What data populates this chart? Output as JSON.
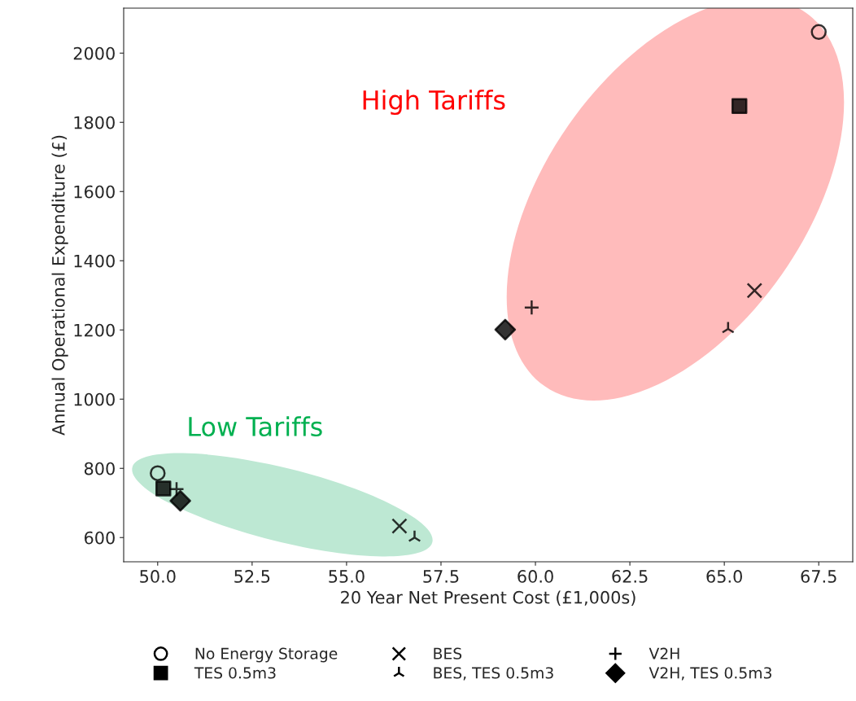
{
  "chart_data": {
    "type": "scatter",
    "xlabel": "20 Year Net Present Cost (£1,000s)",
    "ylabel": "Annual Operational Expenditure (£)",
    "annotations": [
      "High Tariffs",
      "Low Tariffs"
    ],
    "xlim": [
      49.1,
      68.4
    ],
    "xticks": [
      {
        "value": 50,
        "label": "50.0"
      },
      52.5,
      {
        "value": 55,
        "label": "55.0"
      },
      57.5,
      {
        "value": 60,
        "label": "60.0"
      },
      62.5,
      {
        "value": 65,
        "label": "65.0"
      },
      67.5
    ],
    "ylim": [
      530,
      2130
    ],
    "yticks": [
      600,
      800,
      1000,
      1200,
      1400,
      1600,
      1800,
      2000
    ],
    "grid": false,
    "legend": "bottom",
    "series": [
      {
        "name": "No Energy Storage",
        "marker": "circle",
        "x": [
          50.0,
          67.5
        ],
        "values": [
          786,
          2061
        ],
        "color": "#000000"
      },
      {
        "name": "TES 0.5m3",
        "marker": "square",
        "x": [
          50.15,
          65.4
        ],
        "values": [
          742,
          1847
        ],
        "color": "#000000"
      },
      {
        "name": "BES",
        "marker": "cross",
        "x": [
          56.4,
          65.8
        ],
        "values": [
          633,
          1314
        ],
        "color": "#000000"
      },
      {
        "name": "BES, TES 0.5m3",
        "x": [
          56.8,
          65.1
        ],
        "values": [
          600,
          1203
        ],
        "color": "#000000"
      },
      {
        "name": "V2H",
        "marker": "plus",
        "x": [
          50.5,
          59.9
        ],
        "values": [
          740,
          1265
        ],
        "color": "#000000"
      },
      {
        "name": "V2H, TES 0.5m3",
        "marker": "diamond",
        "x": [
          50.6,
          59.2
        ],
        "values": [
          706,
          1201
        ],
        "color": "#000000"
      }
    ]
  }
}
